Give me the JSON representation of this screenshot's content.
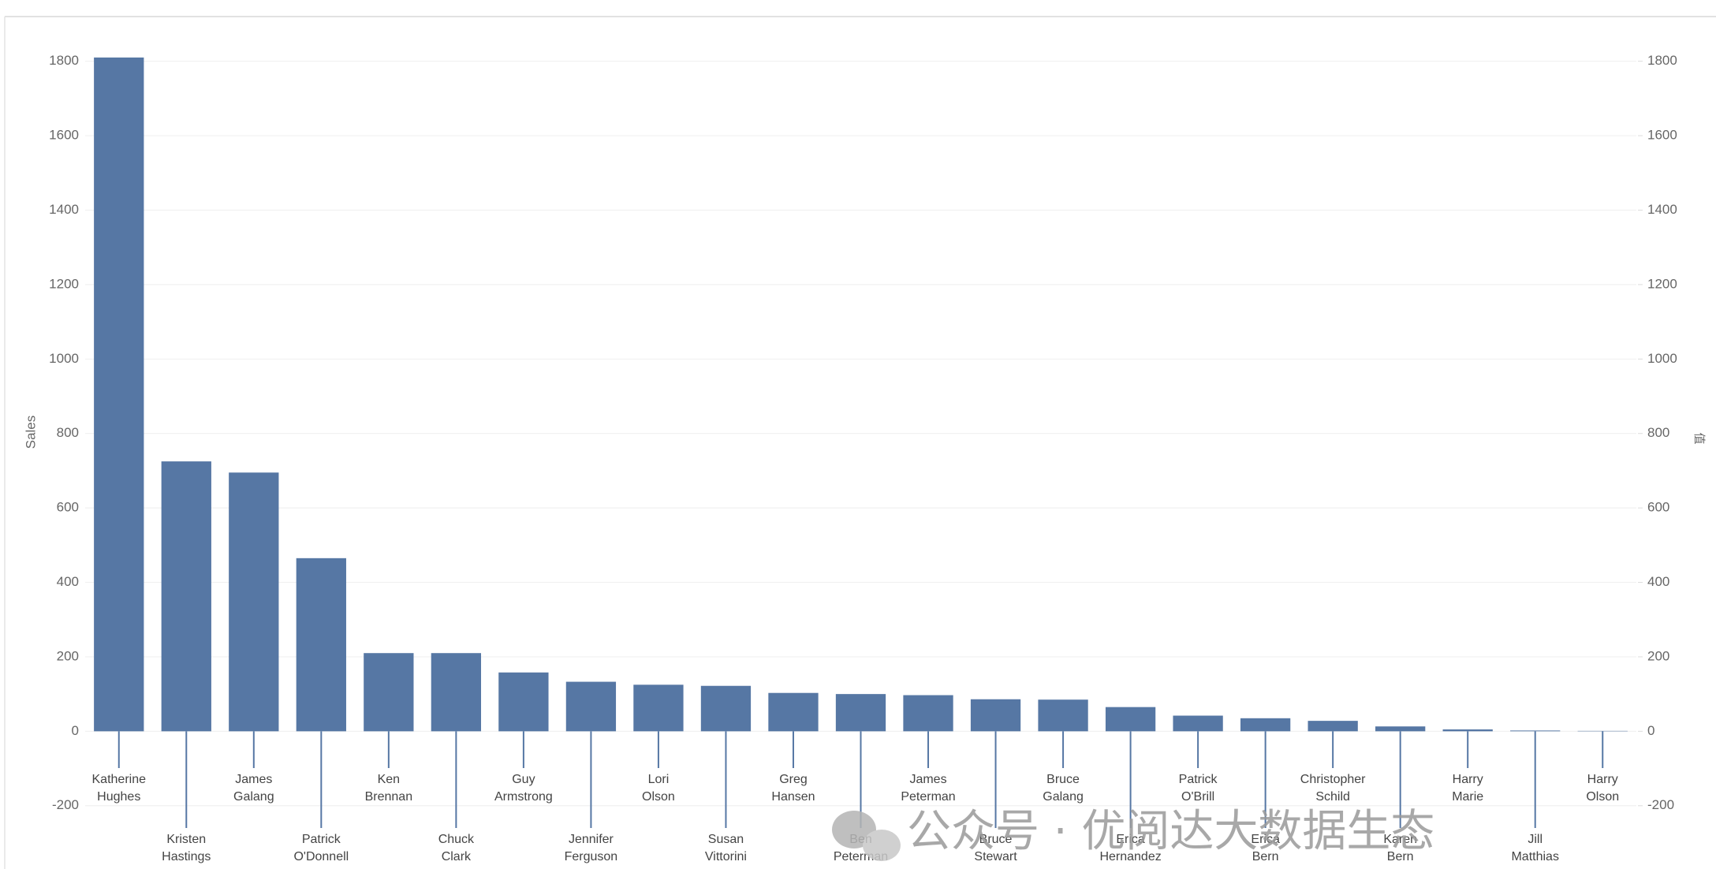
{
  "chart_data": {
    "type": "bar",
    "y_label": "Sales",
    "y2_label": "值",
    "watermark": "公众号 · 优阅达大数据生态",
    "categories": [
      "Katherine Hughes",
      "Kristen Hastings",
      "James Galang",
      "Patrick O'Donnell",
      "Ken Brennan",
      "Chuck Clark",
      "Guy Armstrong",
      "Jennifer Ferguson",
      "Lori Olson",
      "Susan Vittorini",
      "Greg Hansen",
      "Ben Peterman",
      "James Peterman",
      "Bruce Stewart",
      "Bruce Galang",
      "Erica Hernandez",
      "Patrick O'Brill",
      "Erica Bern",
      "Christopher Schild",
      "Karen Bern",
      "Harry Marie",
      "Jill Matthias",
      "Harry Olson"
    ],
    "values": [
      1810,
      725,
      695,
      465,
      210,
      210,
      158,
      133,
      125,
      122,
      103,
      100,
      97,
      86,
      85,
      65,
      42,
      35,
      28,
      13,
      5,
      2,
      1
    ],
    "color": "#5677a4",
    "ylim": [
      -370,
      1920
    ],
    "yticks": [
      -200,
      0,
      200,
      400,
      600,
      800,
      1000,
      1200,
      1400,
      1600,
      1800
    ],
    "y2lim": [
      -370,
      1920
    ],
    "y2ticks": [
      -200,
      0,
      200,
      400,
      600,
      800,
      1000,
      1200,
      1400,
      1600,
      1800
    ],
    "grid": true
  }
}
